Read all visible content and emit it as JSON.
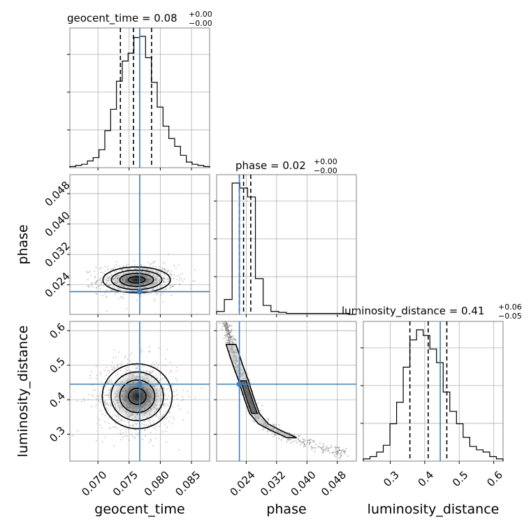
{
  "chart_data": {
    "type": "corner",
    "parameters": [
      "geocent_time",
      "phase",
      "luminosity_distance"
    ],
    "truths": {
      "geocent_time": 0.0767,
      "phase": 0.0222,
      "luminosity_distance": 0.445
    },
    "colors": {
      "truth": "#3f7fb8",
      "hist": "#000000",
      "grid": "#b0b0b0",
      "axis": "#808080"
    },
    "grid": true,
    "titles": {
      "geocent_time": {
        "label": "geocent_time = 0.08",
        "sup": "+0.00",
        "sub": "−0.00"
      },
      "phase": {
        "label": "phase = 0.02",
        "sup": "+0.00",
        "sub": "−0.00"
      },
      "luminosity_distance": {
        "label": "luminosity_distance = 0.41",
        "sup": "+0.06",
        "sub": "−0.05"
      }
    },
    "axes": {
      "geocent_time": {
        "range": [
          0.0655,
          0.0879
        ],
        "ticks": [
          "0.070",
          "0.075",
          "0.080",
          "0.085"
        ],
        "tick_values": [
          0.07,
          0.075,
          0.08,
          0.085
        ]
      },
      "phase": {
        "range": [
          0.0162,
          0.053
        ],
        "ticks": [
          "0.024",
          "0.032",
          "0.040",
          "0.048"
        ],
        "tick_values": [
          0.024,
          0.032,
          0.04,
          0.048
        ]
      },
      "luminosity_distance": {
        "range": [
          0.222,
          0.627
        ],
        "ticks": [
          "0.3",
          "0.4",
          "0.5",
          "0.6"
        ],
        "tick_values": [
          0.3,
          0.4,
          0.5,
          0.6
        ]
      }
    },
    "histograms": {
      "geocent_time": {
        "edges_range": [
          0.0655,
          0.0879
        ],
        "counts": [
          1,
          2,
          3,
          6,
          9,
          16,
          33,
          52,
          77,
          95,
          102,
          116,
          117,
          98,
          76,
          54,
          37,
          26,
          19,
          11,
          5,
          3,
          2,
          1
        ],
        "quantiles": [
          0.0736,
          0.0757,
          0.0786
        ]
      },
      "phase": {
        "edges_range": [
          0.0162,
          0.053
        ],
        "counts": [
          3,
          15,
          132,
          127,
          118,
          36,
          9,
          3,
          2,
          1,
          1,
          1,
          1,
          1,
          1,
          1,
          1,
          0
        ],
        "quantiles": [
          0.0222,
          0.0233,
          0.0252
        ]
      },
      "luminosity_distance": {
        "edges_range": [
          0.222,
          0.627
        ],
        "counts": [
          2,
          4,
          8,
          14,
          33,
          52,
          83,
          107,
          116,
          111,
          99,
          87,
          61,
          44,
          33,
          21,
          13,
          10,
          8,
          4,
          2
        ],
        "quantiles": [
          0.357,
          0.41,
          0.464
        ]
      }
    },
    "contours": {
      "phase_vs_geocent_time": {
        "center": [
          0.0762,
          0.0253
        ],
        "sigma": [
          0.0027,
          0.0017
        ],
        "levels_sigma": [
          0.5,
          1.0,
          1.5,
          2.0
        ]
      },
      "luminosity_distance_vs_geocent_time": {
        "center": [
          0.0763,
          0.41
        ],
        "sigma": [
          0.0028,
          0.047
        ],
        "levels_sigma": [
          0.5,
          1.0,
          1.5,
          2.0
        ]
      },
      "luminosity_distance_vs_phase": {
        "ridge": [
          [
            0.0185,
            0.62
          ],
          [
            0.02,
            0.56
          ],
          [
            0.0218,
            0.5
          ],
          [
            0.0233,
            0.455
          ],
          [
            0.0243,
            0.42
          ],
          [
            0.0252,
            0.39
          ],
          [
            0.0262,
            0.36
          ],
          [
            0.0285,
            0.33
          ],
          [
            0.032,
            0.31
          ],
          [
            0.036,
            0.29
          ],
          [
            0.041,
            0.27
          ],
          [
            0.046,
            0.255
          ],
          [
            0.05,
            0.245
          ]
        ]
      }
    }
  }
}
